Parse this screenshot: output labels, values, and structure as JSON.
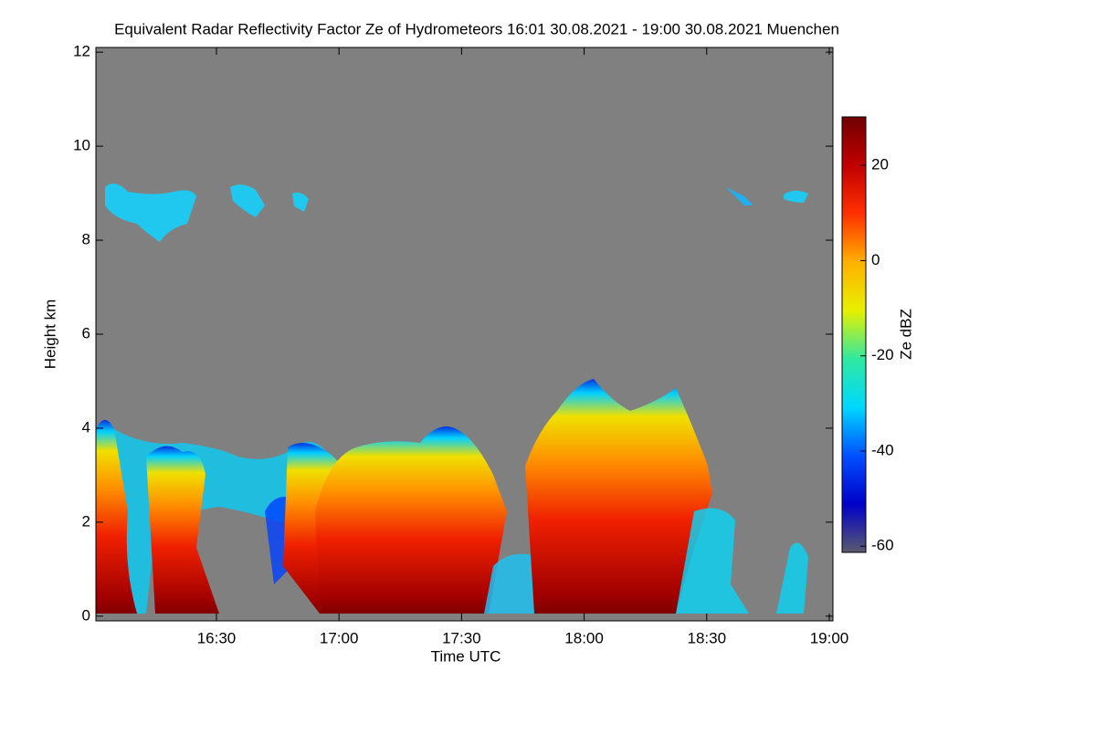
{
  "chart_data": {
    "type": "heatmap",
    "title": "Equivalent Radar Reflectivity Factor Ze of Hydrometeors   16:01 30.08.2021 - 19:00 30.08.2021 Muenchen",
    "x_label": "Time UTC",
    "y_label": "Height km",
    "xlim": [
      960.5,
      1140.9
    ],
    "xticks": [
      {
        "value": 990,
        "label": "16:30"
      },
      {
        "value": 1020,
        "label": "17:00"
      },
      {
        "value": 1050,
        "label": "17:30"
      },
      {
        "value": 1080,
        "label": "18:00"
      },
      {
        "value": 1110,
        "label": "18:30"
      },
      {
        "value": 1140,
        "label": "19:00"
      }
    ],
    "ylim": [
      -0.1,
      12.1
    ],
    "yticks": [
      0,
      2,
      4,
      6,
      8,
      10,
      12
    ],
    "background_color": "#808080",
    "colorbar": {
      "label": "Ze dBZ",
      "lim": [
        -61.3,
        30.2
      ],
      "ticks": [
        -60,
        -40,
        -20,
        0,
        20
      ],
      "colors": [
        "#5a5a6e",
        "#0000c8",
        "#0050ff",
        "#00d8ff",
        "#30e8a0",
        "#e8f000",
        "#ffb000",
        "#ff3000",
        "#c00000",
        "#700000"
      ]
    }
  }
}
